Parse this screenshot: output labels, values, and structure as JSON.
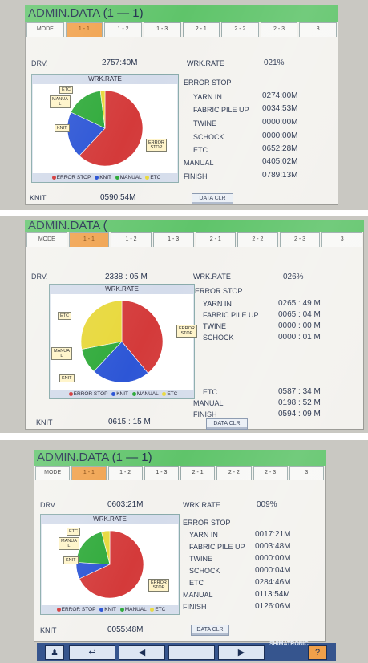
{
  "tabs": [
    "MODE",
    "1 - 1",
    "1 - 2",
    "1 - 3",
    "2 - 1",
    "2 - 2",
    "2 - 3",
    "3"
  ],
  "labels": {
    "drv": "DRV.",
    "wrk_rate": "WRK.RATE",
    "error_stop": "ERROR STOP",
    "yarn_in": "YARN IN",
    "fabric_pile_up": "FABRIC PILE UP",
    "twine": "TWINE",
    "schock": "SCHOCK",
    "etc": "ETC",
    "manual": "MANUAL",
    "finish": "FINISH",
    "knit": "KNIT",
    "chart_title": "WRK.RATE",
    "data_clr": "DATA CLR"
  },
  "legend": {
    "error_stop": "ERROR STOP",
    "knit": "KNIT",
    "manual": "MANUAL",
    "etc": "ETC"
  },
  "callouts": {
    "etc": "ETC",
    "manual": "MANUA\nL",
    "knit": "KNIT",
    "error": "ERROR\nSTOP"
  },
  "colors": {
    "error_stop": "#d43a3a",
    "knit": "#2d56d6",
    "manual": "#2faa3a",
    "etc": "#e8d83a"
  },
  "panels": [
    {
      "title": "ADMIN.DATA (1 — 1)",
      "drv": "2757:40M",
      "wrk_rate": "021%",
      "yarn_in": "0274:00M",
      "fabric_pile_up": "0034:53M",
      "twine": "0000:00M",
      "schock": "0000:00M",
      "etc": "0652:28M",
      "manual": "0405:02M",
      "finish": "0789:13M",
      "knit": "0590:54M",
      "chart_data": {
        "type": "pie",
        "categories": [
          "ERROR STOP",
          "KNIT",
          "MANUAL",
          "ETC"
        ],
        "values": [
          0.62,
          0.2,
          0.16,
          0.02
        ]
      }
    },
    {
      "title": "ADMIN.DATA (",
      "drv": "2338 : 05 M",
      "wrk_rate": "026%",
      "yarn_in": "0265 : 49 M",
      "fabric_pile_up": "0065 : 04 M",
      "twine": "0000 : 00 M",
      "schock": "0000 : 01 M",
      "etc": "0587 : 34 M",
      "manual": "0198 : 52 M",
      "finish": "0594 : 09 M",
      "knit": "0615 : 15 M",
      "chart_data": {
        "type": "pie",
        "categories": [
          "ERROR STOP",
          "KNIT",
          "MANUAL",
          "ETC"
        ],
        "values": [
          0.39,
          0.23,
          0.1,
          0.28
        ]
      }
    },
    {
      "title": "ADMIN.DATA (1 — 1)",
      "drv": "0603:21M",
      "wrk_rate": "009%",
      "yarn_in": "0017:21M",
      "fabric_pile_up": "0003:48M",
      "twine": "0000:00M",
      "schock": "0000:04M",
      "etc": "0284:46M",
      "manual": "0113:54M",
      "finish": "0126:06M",
      "knit": "0055:48M",
      "chart_data": {
        "type": "pie",
        "categories": [
          "ERROR STOP",
          "KNIT",
          "MANUAL",
          "ETC"
        ],
        "values": [
          0.68,
          0.08,
          0.2,
          0.04
        ]
      }
    }
  ],
  "toolbar": {
    "brand": "SHIMATRONIC"
  }
}
